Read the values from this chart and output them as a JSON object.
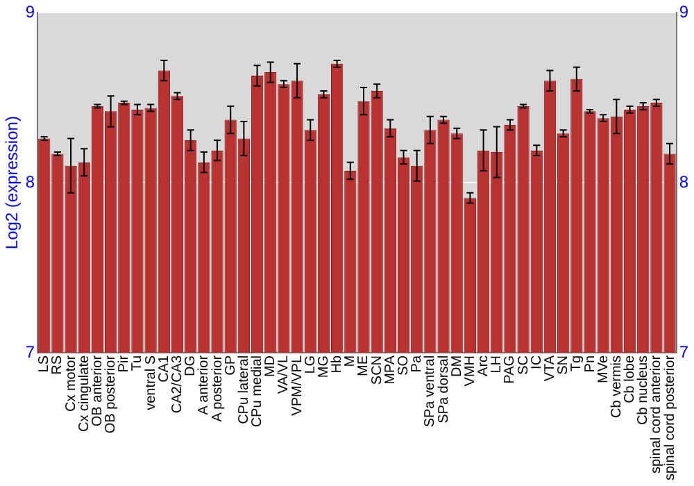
{
  "chart_data": {
    "type": "bar",
    "ylabel": "Log2 (expression)",
    "categories": [
      "LS",
      "RS",
      "Cx motor",
      "Cx cingulate",
      "OB anterior",
      "OB posterior",
      "Pir",
      "Tu",
      "ventral S",
      "CA1",
      "CA2/CA3",
      "DG",
      "A anterior",
      "A posterior",
      "GP",
      "CPu lateral",
      "CPu medial",
      "MD",
      "VA/VL",
      "VPM/VPL",
      "LG",
      "MG",
      "Hb",
      "M",
      "ME",
      "SCN",
      "MPA",
      "SO",
      "Pa",
      "SPa ventral",
      "SPa dorsal",
      "DM",
      "VMH",
      "Arc",
      "LH",
      "PAG",
      "SC",
      "IC",
      "VTA",
      "SN",
      "Tg",
      "Pn",
      "MVe",
      "Cb vermis",
      "Cb lobe",
      "Cb nucleus",
      "spinal cord anterior",
      "spinal cord posterior"
    ],
    "values": [
      8.26,
      8.17,
      8.1,
      8.12,
      8.45,
      8.42,
      8.47,
      8.43,
      8.44,
      8.66,
      8.51,
      8.25,
      8.12,
      8.19,
      8.37,
      8.26,
      8.63,
      8.65,
      8.58,
      8.6,
      8.31,
      8.52,
      8.7,
      8.07,
      8.48,
      8.54,
      8.32,
      8.15,
      8.1,
      8.31,
      8.37,
      8.29,
      7.91,
      8.19,
      8.18,
      8.34,
      8.45,
      8.19,
      8.6,
      8.29,
      8.61,
      8.42,
      8.38,
      8.39,
      8.43,
      8.45,
      8.47,
      8.17
    ],
    "errors": [
      0.01,
      0.01,
      0.16,
      0.08,
      0.01,
      0.09,
      0.01,
      0.03,
      0.02,
      0.06,
      0.02,
      0.06,
      0.06,
      0.06,
      0.08,
      0.1,
      0.06,
      0.06,
      0.02,
      0.1,
      0.06,
      0.02,
      0.02,
      0.05,
      0.08,
      0.04,
      0.05,
      0.04,
      0.09,
      0.08,
      0.02,
      0.03,
      0.03,
      0.12,
      0.15,
      0.03,
      0.01,
      0.03,
      0.06,
      0.02,
      0.07,
      0.01,
      0.02,
      0.1,
      0.02,
      0.02,
      0.02,
      0.06
    ],
    "color": "#b83232",
    "ylim": [
      7,
      9
    ],
    "yticks": [
      7,
      8,
      9
    ],
    "y2lim": [
      7,
      9
    ],
    "y2ticks": [
      7,
      8,
      9
    ],
    "grid": "y",
    "legend": false
  }
}
